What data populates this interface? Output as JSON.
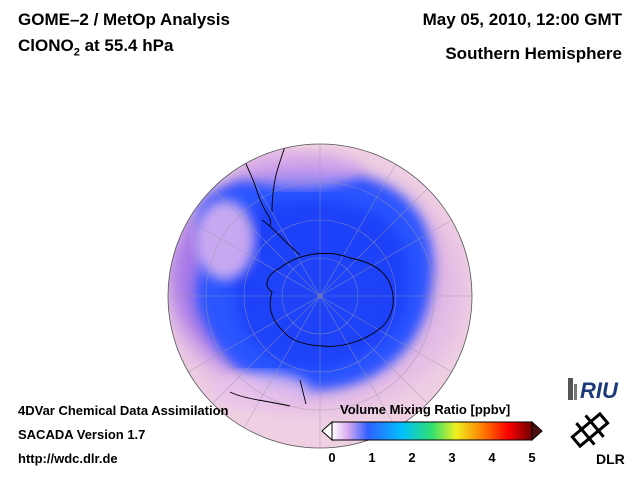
{
  "header": {
    "line1_left": "GOME–2 / MetOp Analysis",
    "line2_left_main": "ClONO",
    "line2_left_sub": "2",
    "line2_left_tail": " at 55.4 hPa",
    "line1_right": "May 05, 2010, 12:00 GMT",
    "line2_right": "Southern Hemisphere"
  },
  "footer": {
    "line1": "4DVar Chemical Data Assimilation",
    "line2": "SACADA Version 1.7",
    "line3": "http://wdc.dlr.de"
  },
  "colorbar": {
    "title": "Volume Mixing Ratio [ppbv]",
    "ticks": [
      "0",
      "1",
      "2",
      "3",
      "4",
      "5"
    ],
    "min": 0,
    "max": 5,
    "colors": [
      "#ffffff",
      "#d8a8f0",
      "#3060ff",
      "#00c0ff",
      "#30e070",
      "#f0f020",
      "#ff8000",
      "#ff0000",
      "#700000"
    ]
  },
  "logos": {
    "riu_text": "RIU",
    "dlr_text": "DLR"
  },
  "map": {
    "projection": "orthographic",
    "hemisphere": "south",
    "land_outline_color": "#000000",
    "background_color": "#f3d6e6",
    "low_value_color": "#2850ff",
    "mid_value_color": "#c080e8"
  }
}
